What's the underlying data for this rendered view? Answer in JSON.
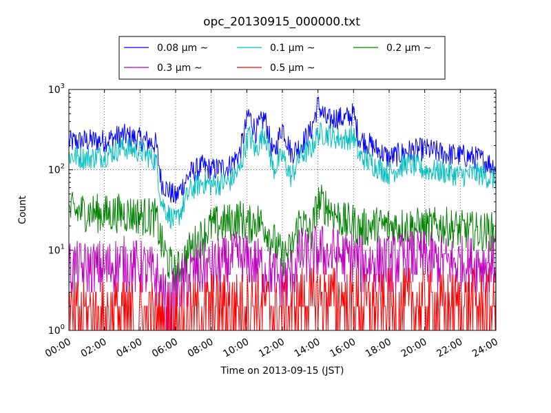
{
  "chart_data": {
    "type": "line",
    "title": "opc_20130915_000000.txt",
    "xlabel": "Time on 2013-09-15 (JST)",
    "ylabel": "Count",
    "x_range": [
      "2013-09-15 00:00",
      "2013-09-16 00:00"
    ],
    "y_scale": "log",
    "ylim": [
      1,
      1000
    ],
    "grid": true,
    "legend_placement": "top-center, above plot",
    "x_ticks": [
      "00:00",
      "02:00",
      "04:00",
      "06:00",
      "08:00",
      "10:00",
      "12:00",
      "14:00",
      "16:00",
      "18:00",
      "20:00",
      "22:00",
      "24:00"
    ],
    "y_ticks": [
      {
        "value": 1,
        "base": "10",
        "exp": "0"
      },
      {
        "value": 10,
        "base": "10",
        "exp": "1"
      },
      {
        "value": 100,
        "base": "10",
        "exp": "2"
      },
      {
        "value": 1000,
        "base": "10",
        "exp": "3"
      }
    ],
    "x_hours": [
      0,
      1,
      2,
      3,
      4,
      4.9,
      5.2,
      5.6,
      6,
      6.8,
      7.5,
      8,
      9,
      9.6,
      10.1,
      10.5,
      11,
      11.5,
      12,
      12.5,
      13,
      13.6,
      14,
      14.5,
      15,
      15.5,
      16,
      16.3,
      17,
      18,
      19,
      20,
      21,
      22,
      23,
      24
    ],
    "series": [
      {
        "name": "0.08 μm ~",
        "color": "#0000ff",
        "noise": 0.15,
        "values": [
          220,
          230,
          230,
          270,
          240,
          210,
          70,
          55,
          45,
          90,
          110,
          100,
          110,
          160,
          500,
          300,
          450,
          150,
          350,
          160,
          200,
          300,
          650,
          400,
          450,
          430,
          500,
          250,
          200,
          140,
          170,
          180,
          160,
          150,
          140,
          110
        ]
      },
      {
        "name": "0.1 μm ~",
        "color": "#00bfbf",
        "noise": 0.15,
        "values": [
          150,
          140,
          150,
          190,
          170,
          130,
          40,
          28,
          22,
          55,
          70,
          65,
          70,
          100,
          280,
          170,
          300,
          100,
          150,
          80,
          150,
          180,
          280,
          280,
          250,
          240,
          260,
          150,
          120,
          90,
          120,
          100,
          95,
          85,
          90,
          75
        ]
      },
      {
        "name": "0.2 μm ~",
        "color": "#008000",
        "noise": 0.25,
        "values": [
          30,
          30,
          28,
          29,
          27,
          25,
          12,
          7,
          5,
          10,
          15,
          20,
          22,
          25,
          20,
          24,
          20,
          13,
          8,
          10,
          25,
          15,
          40,
          35,
          28,
          22,
          22,
          18,
          20,
          20,
          20,
          19,
          20,
          18,
          17,
          17
        ]
      },
      {
        "name": "0.3 μm ~",
        "color": "#bf00bf",
        "noise": 0.35,
        "values": [
          6,
          6,
          6,
          7,
          6,
          5,
          3,
          2,
          3,
          5,
          6,
          6,
          7,
          8,
          7,
          7,
          6,
          5,
          4,
          5,
          9,
          8,
          10,
          9,
          9,
          8,
          8,
          7,
          7,
          7,
          8,
          8,
          7,
          7,
          7,
          7
        ]
      },
      {
        "name": "0.5 μm ~",
        "color": "#ff0000",
        "noise": 0.45,
        "values": [
          1.5,
          1.5,
          1.5,
          1.6,
          1.5,
          1.4,
          1.2,
          1.1,
          1.2,
          1.5,
          1.8,
          2,
          2,
          2.2,
          2,
          2.2,
          2,
          1.8,
          1.6,
          1.8,
          2.3,
          2.2,
          2.6,
          2.5,
          2.4,
          2.3,
          2.2,
          2.1,
          2,
          2,
          2.1,
          2.1,
          2,
          2,
          2,
          2
        ]
      }
    ]
  }
}
